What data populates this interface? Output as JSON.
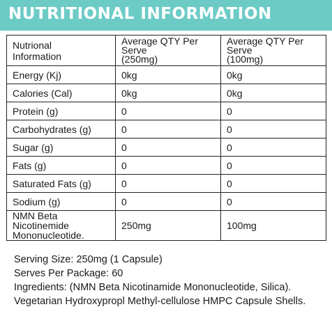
{
  "banner": {
    "title": "NUTRITIONAL INFORMATION"
  },
  "table": {
    "headers": [
      "Nutrional\nInformation",
      "Average QTY Per Serve\n(250mg)",
      "Average QTY Per Serve\n(100mg)"
    ],
    "rows": [
      [
        "Energy (Kj)",
        "0kg",
        "0kg"
      ],
      [
        "Calories (Cal)",
        "0kg",
        "0kg"
      ],
      [
        "Protein (g)",
        "0",
        "0"
      ],
      [
        "Carbohydrates (g)",
        "0",
        "0"
      ],
      [
        "Sugar (g)",
        "0",
        "0"
      ],
      [
        "Fats (g)",
        "0",
        "0"
      ],
      [
        "Saturated Fats (g)",
        "0",
        "0"
      ],
      [
        "Sodium (g)",
        "0",
        "0"
      ],
      [
        "NMN Beta Nicotinemide\nMononucleotide.",
        "250mg",
        "100mg"
      ]
    ]
  },
  "info": {
    "serving_size": "Serving Size: 250mg (1 Capsule)",
    "serves_per_package": "Serves Per Package: 60",
    "ingredients_line1": "Ingredients: (NMN Beta Nicotinamide Mononucleotide, Silica).",
    "ingredients_line2": "Vegetarian Hydroxypropl Methyl-cellulose HMPC Capsule Shells."
  },
  "colors": {
    "banner": "#6dcbc6",
    "banner_text": "#ffffff",
    "text": "#1a1a1a",
    "border": "#222222"
  }
}
